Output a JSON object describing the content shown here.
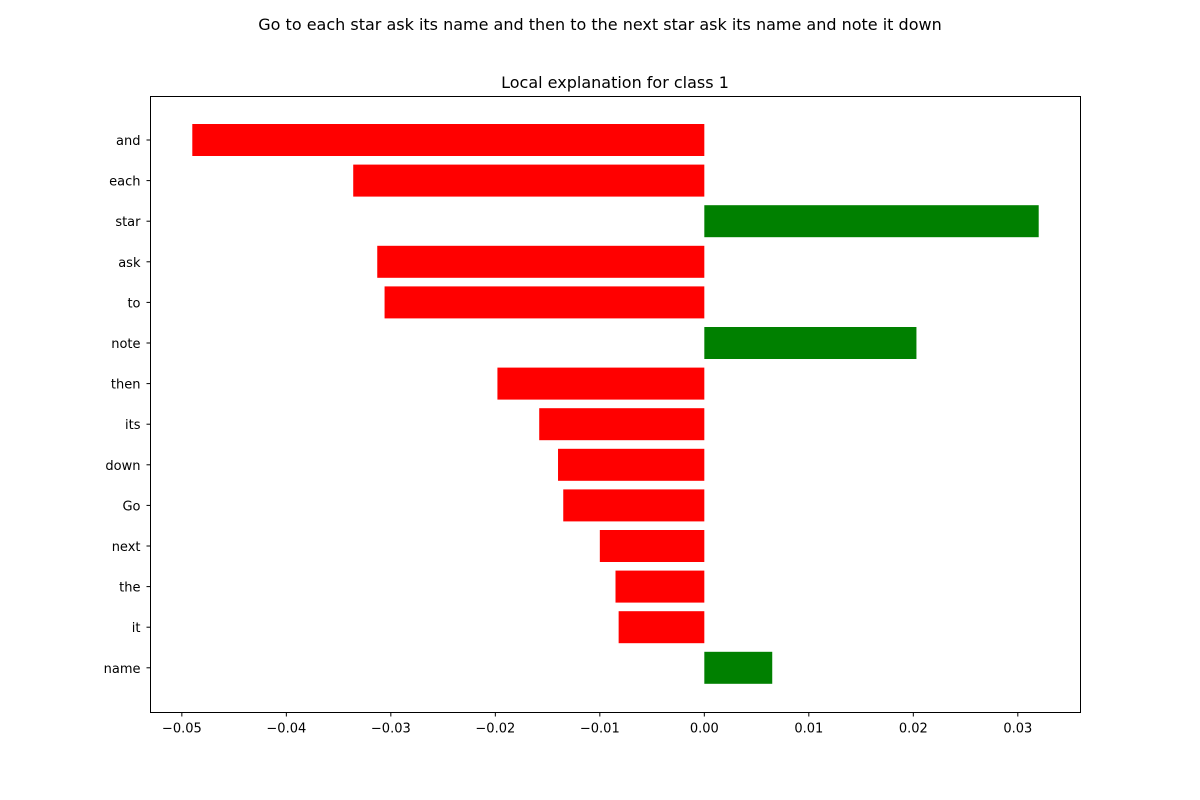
{
  "figure": {
    "suptitle": "Go to each star ask its name and then to the next star ask its name and note it down"
  },
  "chart_data": {
    "type": "bar",
    "orientation": "horizontal",
    "title": "Local explanation for class 1",
    "xlabel": "",
    "ylabel": "",
    "categories": [
      "and",
      "each",
      "star",
      "ask",
      "to",
      "note",
      "then",
      "its",
      "down",
      "Go",
      "next",
      "the",
      "it",
      "name"
    ],
    "values": [
      -0.049,
      -0.0336,
      0.032,
      -0.0313,
      -0.0306,
      0.0203,
      -0.0198,
      -0.0158,
      -0.014,
      -0.0135,
      -0.01,
      -0.0085,
      -0.0082,
      0.0065
    ],
    "xlim": [
      -0.053,
      0.036
    ],
    "xticks": [
      -0.05,
      -0.04,
      -0.03,
      -0.02,
      -0.01,
      0.0,
      0.01,
      0.02,
      0.03
    ],
    "xtick_labels": [
      "−0.05",
      "−0.04",
      "−0.03",
      "−0.02",
      "−0.01",
      "0.00",
      "0.01",
      "0.02",
      "0.03"
    ],
    "grid": false,
    "colors": {
      "positive": "#008000",
      "negative": "#ff0000"
    }
  }
}
